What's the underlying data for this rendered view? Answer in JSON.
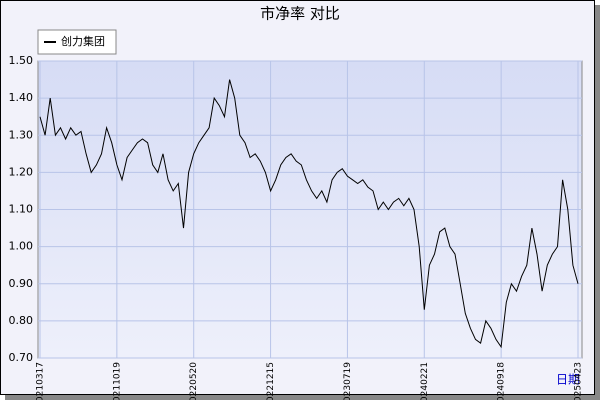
{
  "chart_data": {
    "type": "line",
    "title": "市净率  对比",
    "x_label": "日期",
    "categories": [
      "20210317",
      null,
      null,
      null,
      null,
      null,
      null,
      null,
      null,
      null,
      null,
      null,
      null,
      null,
      null,
      "20211019",
      null,
      null,
      null,
      null,
      null,
      null,
      null,
      null,
      null,
      null,
      null,
      null,
      null,
      null,
      "20220520",
      null,
      null,
      null,
      null,
      null,
      null,
      null,
      null,
      null,
      null,
      null,
      null,
      null,
      null,
      "20221215",
      null,
      null,
      null,
      null,
      null,
      null,
      null,
      null,
      null,
      null,
      null,
      null,
      null,
      null,
      "20230719",
      null,
      null,
      null,
      null,
      null,
      null,
      null,
      null,
      null,
      null,
      null,
      null,
      null,
      null,
      "20240221",
      null,
      null,
      null,
      null,
      null,
      null,
      null,
      null,
      null,
      null,
      null,
      null,
      null,
      null,
      "20240918",
      null,
      null,
      null,
      null,
      null,
      null,
      null,
      null,
      null,
      null,
      null,
      null,
      null,
      null,
      "20250423"
    ],
    "series": [
      {
        "name": "创力集团",
        "color": "#000000",
        "values": [
          1.35,
          1.3,
          1.4,
          1.3,
          1.32,
          1.29,
          1.32,
          1.3,
          1.31,
          1.25,
          1.2,
          1.22,
          1.25,
          1.32,
          1.28,
          1.22,
          1.18,
          1.24,
          1.26,
          1.28,
          1.29,
          1.28,
          1.22,
          1.2,
          1.25,
          1.18,
          1.15,
          1.17,
          1.05,
          1.2,
          1.25,
          1.28,
          1.3,
          1.32,
          1.4,
          1.38,
          1.35,
          1.45,
          1.4,
          1.3,
          1.28,
          1.24,
          1.25,
          1.23,
          1.2,
          1.15,
          1.18,
          1.22,
          1.24,
          1.25,
          1.23,
          1.22,
          1.18,
          1.15,
          1.13,
          1.15,
          1.12,
          1.18,
          1.2,
          1.21,
          1.19,
          1.18,
          1.17,
          1.18,
          1.16,
          1.15,
          1.1,
          1.12,
          1.1,
          1.12,
          1.13,
          1.11,
          1.13,
          1.1,
          1.0,
          0.83,
          0.95,
          0.98,
          1.04,
          1.05,
          1.0,
          0.98,
          0.9,
          0.82,
          0.78,
          0.75,
          0.74,
          0.8,
          0.78,
          0.75,
          0.73,
          0.85,
          0.9,
          0.88,
          0.92,
          0.95,
          1.05,
          0.98,
          0.88,
          0.95,
          0.98,
          1.0,
          1.18,
          1.1,
          0.95,
          0.9
        ]
      }
    ],
    "ylim": [
      0.7,
      1.5
    ],
    "yticks": [
      {
        "value": 0.7,
        "label": "0.70"
      },
      {
        "value": 0.8,
        "label": "0.80"
      },
      {
        "value": 0.9,
        "label": "0.90"
      },
      {
        "value": 1.0,
        "label": "1.00"
      },
      {
        "value": 1.1,
        "label": "1.10"
      },
      {
        "value": 1.2,
        "label": "1.20"
      },
      {
        "value": 1.3,
        "label": "1.30"
      },
      {
        "value": 1.4,
        "label": "1.40"
      },
      {
        "value": 1.5,
        "label": "1.50"
      }
    ],
    "grid": true,
    "legend": "top-left"
  }
}
